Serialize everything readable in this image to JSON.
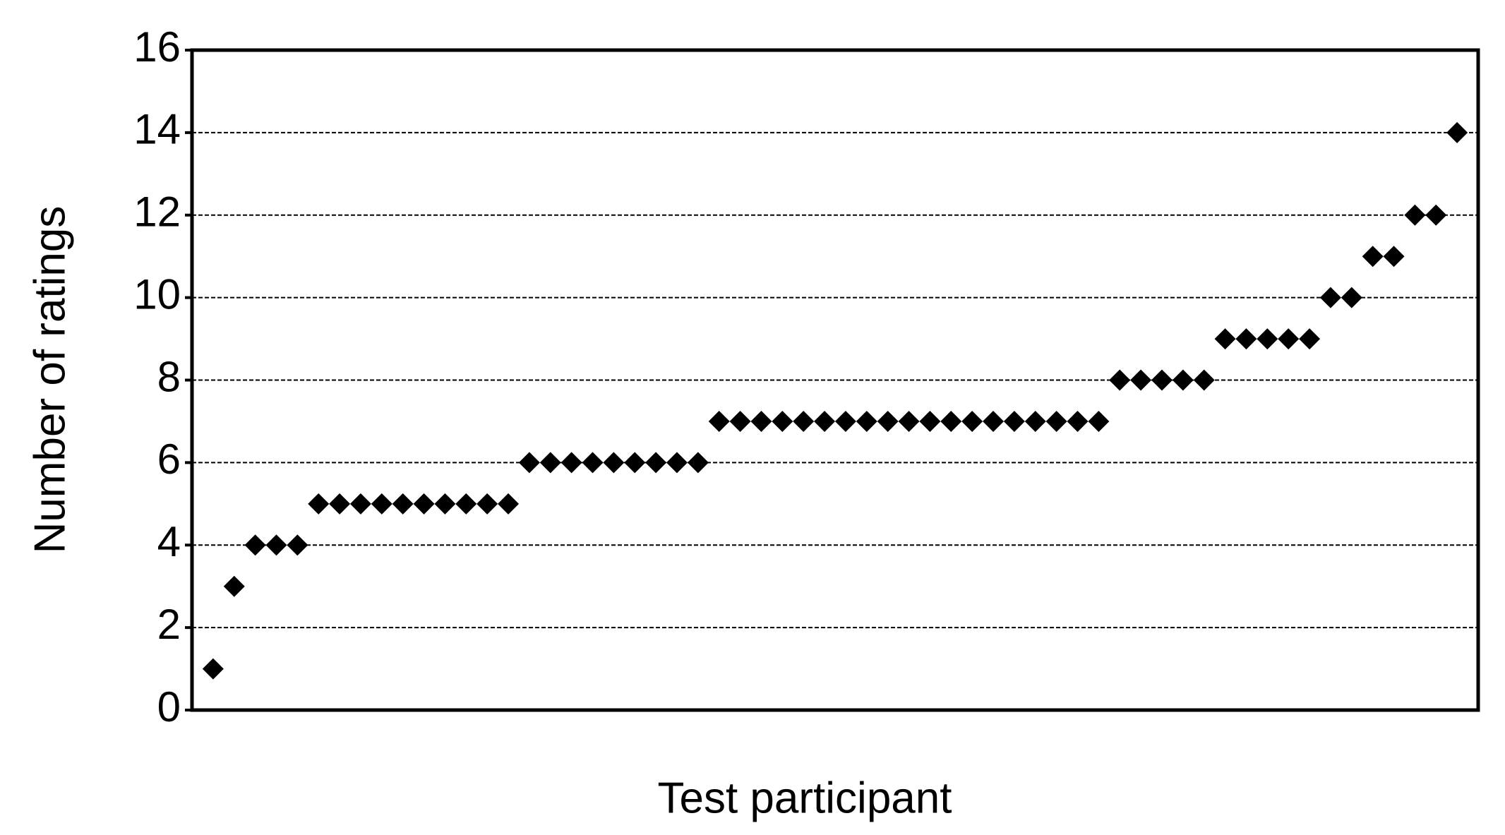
{
  "chart_data": {
    "type": "scatter",
    "x_label": "Test participant",
    "y_label": "Number of ratings",
    "values": [
      1,
      3,
      4,
      4,
      4,
      5,
      5,
      5,
      5,
      5,
      5,
      5,
      5,
      5,
      5,
      6,
      6,
      6,
      6,
      6,
      6,
      6,
      6,
      6,
      7,
      7,
      7,
      7,
      7,
      7,
      7,
      7,
      7,
      7,
      7,
      7,
      7,
      7,
      7,
      7,
      7,
      7,
      7,
      8,
      8,
      8,
      8,
      8,
      9,
      9,
      9,
      9,
      9,
      10,
      10,
      11,
      11,
      12,
      12,
      14
    ],
    "color": "#000000",
    "marker": "diamond",
    "ylim": [
      0,
      16
    ],
    "yticks": [
      0,
      2,
      4,
      6,
      8,
      10,
      12,
      14,
      16
    ],
    "grid": true
  }
}
